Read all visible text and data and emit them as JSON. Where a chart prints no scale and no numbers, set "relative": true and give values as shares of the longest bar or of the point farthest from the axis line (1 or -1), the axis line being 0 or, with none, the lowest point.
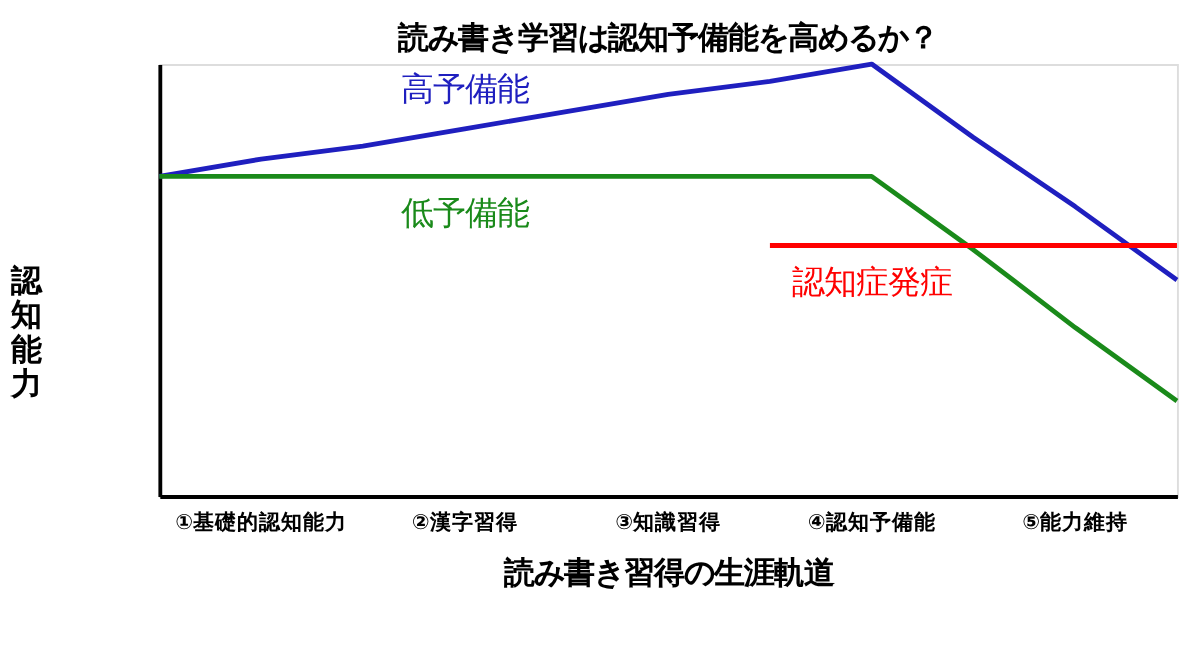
{
  "chart_data": {
    "type": "line",
    "title": "読み書き学習は認知予備能を高めるか？",
    "xlabel": "読み書き習得の生涯軌道",
    "ylabel": "認知能力",
    "relative": true,
    "categories": [
      null,
      null,
      null,
      null,
      null,
      null,
      null,
      null,
      null,
      null,
      null
    ],
    "annotations": [
      "①基礎的認知能力",
      "②漢字習得",
      "③知識習得",
      "④認知予備能",
      "⑤能力維持"
    ],
    "series": [
      {
        "name": "高予備能",
        "color": "#1f1fbf",
        "values": [
          0.74,
          0.78,
          0.81,
          0.85,
          0.89,
          0.93,
          0.96,
          1.0,
          0.83,
          0.67,
          0.5
        ]
      },
      {
        "name": "低予備能",
        "color": "#1a8a1a",
        "values": [
          0.74,
          0.74,
          0.74,
          0.74,
          0.74,
          0.74,
          0.74,
          0.74,
          0.57,
          0.39,
          0.22
        ]
      },
      {
        "name": "認知症発症",
        "color": "#ff0000",
        "values": [
          null,
          null,
          null,
          null,
          null,
          null,
          0.58,
          0.58,
          0.58,
          0.58,
          0.58
        ]
      }
    ],
    "grid": false,
    "legend": false,
    "tick_labels": false,
    "marker": "none",
    "line_style": "solid"
  }
}
